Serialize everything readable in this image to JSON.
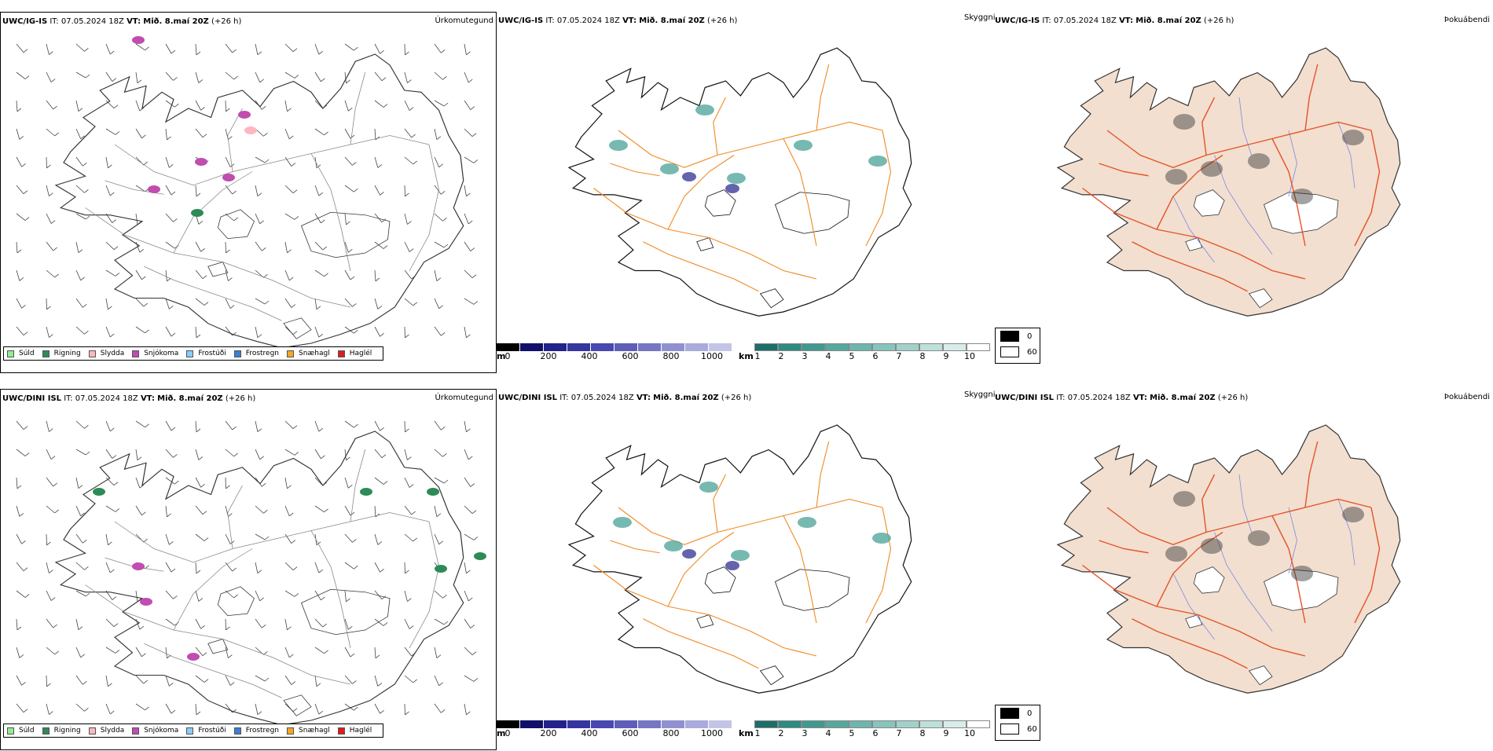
{
  "rows": [
    {
      "model": "UWC/IG-IS",
      "it": "IT: 07.05.2024 18Z",
      "vt_label": "VT:",
      "vt": "Mið. 8.maí 20Z",
      "lead": "(+26 h)"
    },
    {
      "model": "UWC/DINI ISL",
      "it": "IT: 07.05.2024 18Z",
      "vt_label": "VT:",
      "vt": "Mið. 8.maí 20Z",
      "lead": "(+26 h)"
    }
  ],
  "panels": {
    "precip": {
      "label": "Úrkomutegund"
    },
    "visibility": {
      "label": "Skyggni"
    },
    "fog": {
      "label": "Þokuábendi"
    }
  },
  "precip_legend": [
    {
      "label": "Súld",
      "color": "#90ee90"
    },
    {
      "label": "Rigning",
      "color": "#2e8b57"
    },
    {
      "label": "Slydda",
      "color": "#ffb6c1"
    },
    {
      "label": "Snjókoma",
      "color": "#c04db0"
    },
    {
      "label": "Frostúði",
      "color": "#87cefa"
    },
    {
      "label": "Frostregn",
      "color": "#3a7fd0"
    },
    {
      "label": "Snæhagl",
      "color": "#f5a623"
    },
    {
      "label": "Haglél",
      "color": "#e21b1b"
    }
  ],
  "height_scale": {
    "unit": "m",
    "ticks": [
      "0",
      "200",
      "400",
      "600",
      "800",
      "1000"
    ],
    "colors": [
      "#000000",
      "#10106a",
      "#22228a",
      "#3535a0",
      "#4848b0",
      "#5e5eb8",
      "#7676c4",
      "#9090d0",
      "#aaaadc",
      "#c4c4e6"
    ]
  },
  "visibility_scale": {
    "unit": "km",
    "ticks": [
      "1",
      "2",
      "3",
      "4",
      "5",
      "6",
      "7",
      "8",
      "9",
      "10"
    ],
    "colors": [
      "#1b6e6a",
      "#2e8b80",
      "#3f9a8f",
      "#55a89e",
      "#6cb6ad",
      "#86c4bc",
      "#a0d2cb",
      "#bce0da",
      "#d6ede9",
      "#ffffff"
    ]
  },
  "fog_legend": [
    {
      "label": "0",
      "color": "#000000"
    },
    {
      "label": "60",
      "color": "#ffffff"
    }
  ],
  "precip_blobs": [
    [
      {
        "color": "#c04db0"
      },
      {
        "color": "#c04db0"
      },
      {
        "color": "#c04db0"
      },
      {
        "color": "#c04db0"
      },
      {
        "color": "#c04db0"
      },
      {
        "color": "#ffb6c1"
      },
      {
        "color": "#2e8b57"
      }
    ],
    [
      {
        "color": "#2e8b57"
      },
      {
        "color": "#2e8b57"
      },
      {
        "color": "#2e8b57"
      },
      {
        "color": "#2e8b57"
      },
      {
        "color": "#c04db0"
      },
      {
        "color": "#c04db0"
      },
      {
        "color": "#2e8b57"
      },
      {
        "color": "#c04db0"
      }
    ]
  ]
}
